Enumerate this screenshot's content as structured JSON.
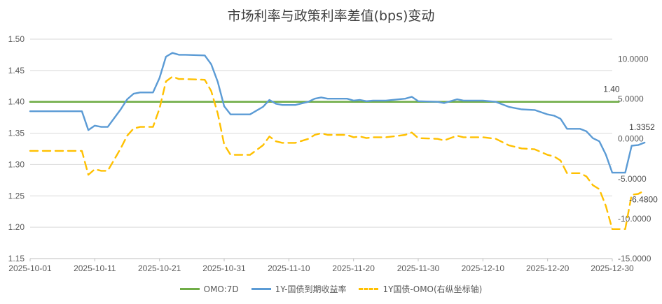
{
  "chart_data": {
    "type": "line",
    "title": "市场利率与政策利率差值(bps)变动",
    "x_ticks": [
      "2025-10-01",
      "2025-10-11",
      "2025-10-21",
      "2025-10-31",
      "2025-11-10",
      "2025-11-20",
      "2025-11-30",
      "2025-12-10",
      "2025-12-20",
      "2025-12-30"
    ],
    "x_range": [
      "2025-10-01",
      "2025-12-30"
    ],
    "y_left": {
      "min": 1.15,
      "max": 1.5,
      "ticks": [
        "1.15",
        "1.20",
        "1.25",
        "1.30",
        "1.35",
        "1.40",
        "1.45",
        "1.50"
      ]
    },
    "y_right": {
      "min": -15,
      "max": 12.5,
      "ticks": [
        "-15.0000",
        "-10.0000",
        "-5.0000",
        "0.0000",
        "5.0000",
        "10.0000"
      ]
    },
    "grid": true,
    "legend_position": "bottom",
    "series": [
      {
        "name": "OMO:7D",
        "axis": "left",
        "color": "#70ad47",
        "style": "solid",
        "points": [
          [
            "2025-10-01",
            1.4
          ],
          [
            "2025-12-31",
            1.4
          ]
        ]
      },
      {
        "name": "1Y-国债到期收益率",
        "axis": "left",
        "color": "#5b9bd5",
        "style": "solid",
        "points": [
          [
            "2025-10-01",
            1.385
          ],
          [
            "2025-10-09",
            1.385
          ],
          [
            "2025-10-10",
            1.355
          ],
          [
            "2025-10-11",
            1.362
          ],
          [
            "2025-10-12",
            1.36
          ],
          [
            "2025-10-13",
            1.36
          ],
          [
            "2025-10-15",
            1.388
          ],
          [
            "2025-10-16",
            1.404
          ],
          [
            "2025-10-17",
            1.413
          ],
          [
            "2025-10-18",
            1.415
          ],
          [
            "2025-10-20",
            1.415
          ],
          [
            "2025-10-21",
            1.438
          ],
          [
            "2025-10-22",
            1.472
          ],
          [
            "2025-10-23",
            1.478
          ],
          [
            "2025-10-24",
            1.475
          ],
          [
            "2025-10-25",
            1.475
          ],
          [
            "2025-10-28",
            1.474
          ],
          [
            "2025-10-29",
            1.46
          ],
          [
            "2025-10-30",
            1.432
          ],
          [
            "2025-10-31",
            1.393
          ],
          [
            "2025-11-01",
            1.38
          ],
          [
            "2025-11-04",
            1.38
          ],
          [
            "2025-11-06",
            1.392
          ],
          [
            "2025-11-07",
            1.403
          ],
          [
            "2025-11-08",
            1.397
          ],
          [
            "2025-11-09",
            1.395
          ],
          [
            "2025-11-11",
            1.395
          ],
          [
            "2025-11-13",
            1.4
          ],
          [
            "2025-11-14",
            1.405
          ],
          [
            "2025-11-15",
            1.407
          ],
          [
            "2025-11-16",
            1.405
          ],
          [
            "2025-11-19",
            1.405
          ],
          [
            "2025-11-20",
            1.402
          ],
          [
            "2025-11-21",
            1.403
          ],
          [
            "2025-11-22",
            1.401
          ],
          [
            "2025-11-23",
            1.402
          ],
          [
            "2025-11-25",
            1.402
          ],
          [
            "2025-11-27",
            1.404
          ],
          [
            "2025-11-28",
            1.405
          ],
          [
            "2025-11-29",
            1.408
          ],
          [
            "2025-11-30",
            1.401
          ],
          [
            "2025-12-03",
            1.4
          ],
          [
            "2025-12-04",
            1.398
          ],
          [
            "2025-12-06",
            1.404
          ],
          [
            "2025-12-07",
            1.402
          ],
          [
            "2025-12-10",
            1.402
          ],
          [
            "2025-12-12",
            1.4
          ],
          [
            "2025-12-14",
            1.392
          ],
          [
            "2025-12-16",
            1.388
          ],
          [
            "2025-12-18",
            1.387
          ],
          [
            "2025-12-20",
            1.38
          ],
          [
            "2025-12-21",
            1.378
          ],
          [
            "2025-12-22",
            1.373
          ],
          [
            "2025-12-23",
            1.357
          ],
          [
            "2025-12-25",
            1.357
          ],
          [
            "2025-12-26",
            1.353
          ],
          [
            "2025-12-27",
            1.342
          ],
          [
            "2025-12-28",
            1.337
          ],
          [
            "2025-12-29",
            1.316
          ],
          [
            "2025-12-30",
            1.287
          ],
          [
            "2025-12-31",
            1.287
          ],
          [
            "2026-01-01",
            1.287
          ],
          [
            "2026-01-02",
            1.33
          ],
          [
            "2026-01-03",
            1.331
          ],
          [
            "2026-01-04",
            1.335
          ]
        ]
      },
      {
        "name": "1Y国债-OMO(右纵坐标轴)",
        "axis": "right",
        "color": "#ffc000",
        "style": "dashed",
        "points": [
          [
            "2025-10-01",
            -1.5
          ],
          [
            "2025-10-09",
            -1.5
          ],
          [
            "2025-10-10",
            -4.5
          ],
          [
            "2025-10-11",
            -3.8
          ],
          [
            "2025-10-12",
            -4.0
          ],
          [
            "2025-10-13",
            -4.0
          ],
          [
            "2025-10-15",
            -1.2
          ],
          [
            "2025-10-16",
            0.4
          ],
          [
            "2025-10-17",
            1.3
          ],
          [
            "2025-10-18",
            1.5
          ],
          [
            "2025-10-20",
            1.5
          ],
          [
            "2025-10-21",
            3.8
          ],
          [
            "2025-10-22",
            7.2
          ],
          [
            "2025-10-23",
            7.8
          ],
          [
            "2025-10-24",
            7.5
          ],
          [
            "2025-10-25",
            7.5
          ],
          [
            "2025-10-28",
            7.4
          ],
          [
            "2025-10-29",
            6.0
          ],
          [
            "2025-10-30",
            3.2
          ],
          [
            "2025-10-31",
            -0.7
          ],
          [
            "2025-11-01",
            -2.0
          ],
          [
            "2025-11-04",
            -2.0
          ],
          [
            "2025-11-06",
            -0.8
          ],
          [
            "2025-11-07",
            0.3
          ],
          [
            "2025-11-08",
            -0.3
          ],
          [
            "2025-11-09",
            -0.5
          ],
          [
            "2025-11-11",
            -0.5
          ],
          [
            "2025-11-13",
            0.0
          ],
          [
            "2025-11-14",
            0.5
          ],
          [
            "2025-11-15",
            0.7
          ],
          [
            "2025-11-16",
            0.5
          ],
          [
            "2025-11-19",
            0.5
          ],
          [
            "2025-11-20",
            0.2
          ],
          [
            "2025-11-21",
            0.3
          ],
          [
            "2025-11-22",
            0.1
          ],
          [
            "2025-11-23",
            0.2
          ],
          [
            "2025-11-25",
            0.2
          ],
          [
            "2025-11-27",
            0.4
          ],
          [
            "2025-11-28",
            0.5
          ],
          [
            "2025-11-29",
            0.8
          ],
          [
            "2025-11-30",
            0.1
          ],
          [
            "2025-12-03",
            0.0
          ],
          [
            "2025-12-04",
            -0.2
          ],
          [
            "2025-12-06",
            0.4
          ],
          [
            "2025-12-07",
            0.2
          ],
          [
            "2025-12-10",
            0.2
          ],
          [
            "2025-12-12",
            0.0
          ],
          [
            "2025-12-14",
            -0.8
          ],
          [
            "2025-12-16",
            -1.2
          ],
          [
            "2025-12-18",
            -1.3
          ],
          [
            "2025-12-20",
            -2.0
          ],
          [
            "2025-12-21",
            -2.2
          ],
          [
            "2025-12-22",
            -2.7
          ],
          [
            "2025-12-23",
            -4.3
          ],
          [
            "2025-12-25",
            -4.3
          ],
          [
            "2025-12-26",
            -4.7
          ],
          [
            "2025-12-27",
            -5.8
          ],
          [
            "2025-12-28",
            -6.3
          ],
          [
            "2025-12-29",
            -8.4
          ],
          [
            "2025-12-30",
            -11.3
          ],
          [
            "2025-12-31",
            -11.3
          ],
          [
            "2026-01-01",
            -11.3
          ],
          [
            "2026-01-02",
            -7.0
          ],
          [
            "2026-01-03",
            -6.9
          ],
          [
            "2026-01-04",
            -6.48
          ]
        ]
      }
    ],
    "data_labels": [
      {
        "series": "OMO:7D",
        "text": "1.40"
      },
      {
        "series": "1Y-国债到期收益率",
        "text": "1.3352"
      },
      {
        "series": "1Y国债-OMO(右纵坐标轴)",
        "text": "-6.4800"
      }
    ]
  }
}
